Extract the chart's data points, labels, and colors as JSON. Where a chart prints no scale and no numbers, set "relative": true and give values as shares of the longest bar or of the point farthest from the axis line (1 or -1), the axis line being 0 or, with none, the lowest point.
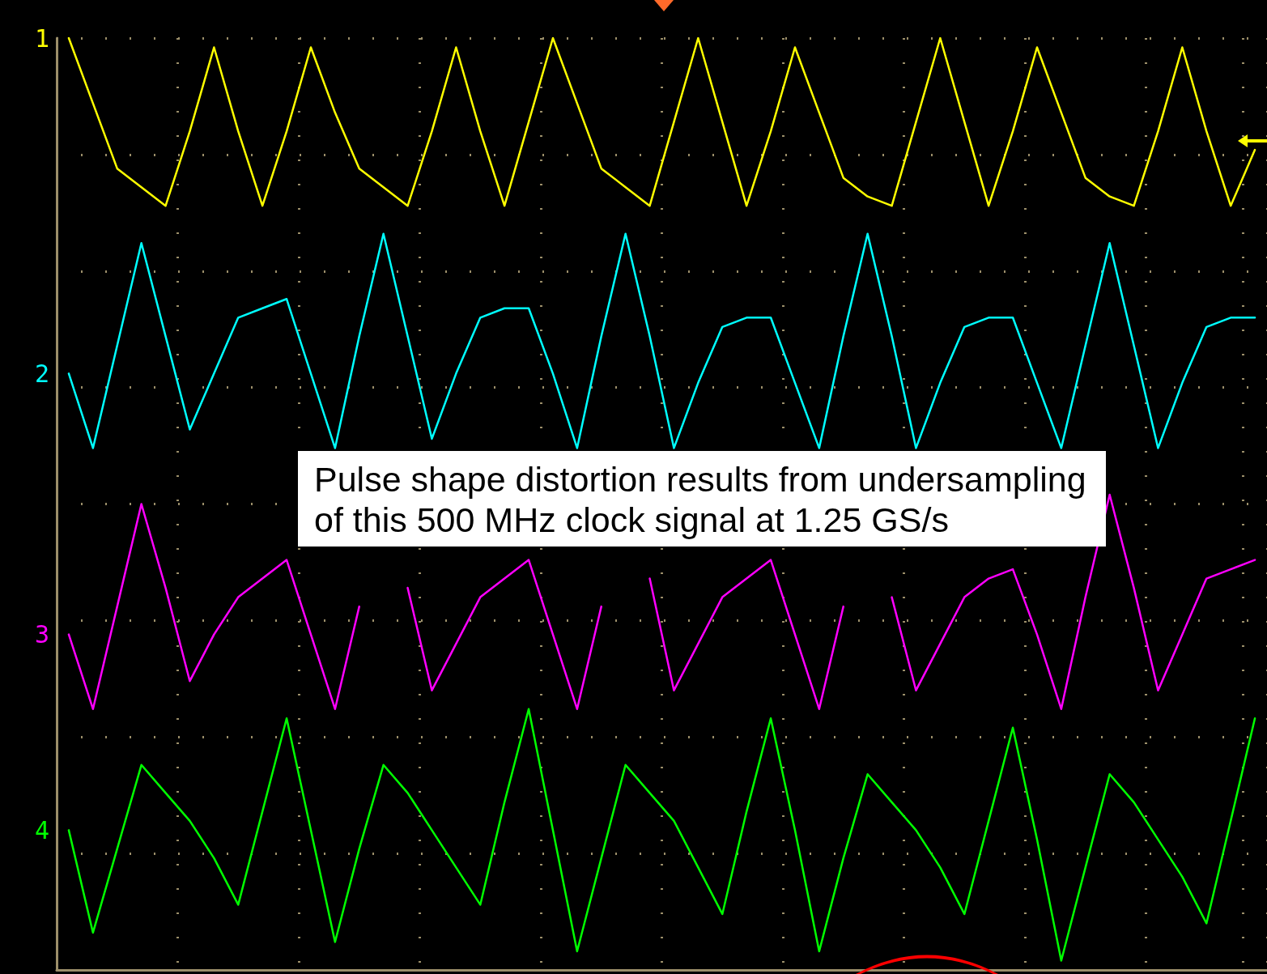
{
  "chart_data": {
    "type": "line",
    "relative": true,
    "grid": true,
    "marker": "none",
    "line_style": "solid",
    "categories": [
      null,
      null,
      null,
      null,
      null,
      null,
      null,
      null,
      null,
      null,
      null,
      null,
      null,
      null,
      null,
      null,
      null,
      null,
      null,
      null,
      null,
      null,
      null,
      null,
      null,
      null,
      null,
      null,
      null,
      null,
      null,
      null,
      null,
      null,
      null,
      null,
      null,
      null,
      null,
      null,
      null,
      null,
      null,
      null,
      null,
      null,
      null,
      null,
      null,
      null
    ],
    "annotations": [
      "Pulse shape distortion results from undersampling of this 500 MHz clock signal at 1.25 GS/s"
    ],
    "series": [
      {
        "name": "1",
        "color": "#ffff00",
        "values": [
          1.0,
          0.93,
          0.86,
          0.84,
          0.82,
          0.9,
          0.99,
          0.9,
          0.82,
          0.9,
          0.99,
          0.92,
          0.86,
          0.84,
          0.82,
          0.9,
          0.99,
          0.9,
          0.82,
          0.91,
          1.0,
          0.93,
          0.86,
          0.84,
          0.82,
          0.91,
          1.0,
          0.91,
          0.82,
          0.9,
          0.99,
          0.92,
          0.85,
          0.83,
          0.82,
          0.91,
          1.0,
          0.91,
          0.82,
          0.9,
          0.99,
          0.92,
          0.85,
          0.83,
          0.82,
          0.9,
          0.99,
          0.9,
          0.82,
          0.88
        ]
      },
      {
        "name": "2",
        "color": "#00ffff",
        "values": [
          0.64,
          0.56,
          0.67,
          0.78,
          0.68,
          0.58,
          0.64,
          0.7,
          0.71,
          0.72,
          0.64,
          0.56,
          0.68,
          0.79,
          0.68,
          0.57,
          0.64,
          0.7,
          0.71,
          0.71,
          0.64,
          0.56,
          0.68,
          0.79,
          0.68,
          0.56,
          0.63,
          0.69,
          0.7,
          0.7,
          0.63,
          0.56,
          0.68,
          0.79,
          0.68,
          0.56,
          0.63,
          0.69,
          0.7,
          0.7,
          0.63,
          0.56,
          0.67,
          0.78,
          0.67,
          0.56,
          0.63,
          0.69,
          0.7,
          0.7
        ]
      },
      {
        "name": "3",
        "color": "#ff00ff",
        "values": [
          0.36,
          0.28,
          0.39,
          0.5,
          0.41,
          0.31,
          0.36,
          0.4,
          0.42,
          0.44,
          0.36,
          0.28,
          0.39,
          null,
          0.41,
          0.3,
          0.35,
          0.4,
          0.42,
          0.44,
          0.36,
          0.28,
          0.39,
          null,
          0.42,
          0.3,
          0.35,
          0.4,
          0.42,
          0.44,
          0.36,
          0.28,
          0.39,
          null,
          0.4,
          0.3,
          0.35,
          0.4,
          0.42,
          0.43,
          0.36,
          0.28,
          0.4,
          0.51,
          0.41,
          0.3,
          0.36,
          0.42,
          0.43,
          0.44
        ]
      },
      {
        "name": "4",
        "color": "#00ff00",
        "values": [
          0.15,
          0.04,
          0.13,
          0.22,
          0.19,
          0.16,
          0.12,
          0.07,
          0.17,
          0.27,
          0.15,
          0.03,
          0.13,
          0.22,
          0.19,
          0.15,
          0.11,
          0.07,
          0.18,
          0.28,
          0.15,
          0.02,
          0.12,
          0.22,
          0.19,
          0.16,
          0.11,
          0.06,
          0.17,
          0.27,
          0.15,
          0.02,
          0.12,
          0.21,
          0.18,
          0.15,
          0.11,
          0.06,
          0.16,
          0.26,
          0.14,
          0.01,
          0.11,
          0.21,
          0.18,
          0.14,
          0.1,
          0.05,
          0.16,
          0.27
        ]
      }
    ]
  }
}
